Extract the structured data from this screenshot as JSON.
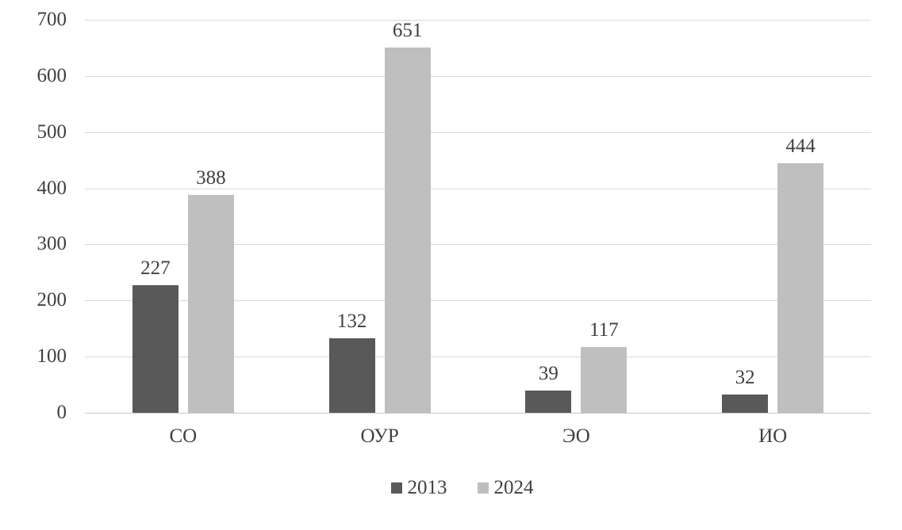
{
  "chart_data": {
    "type": "bar",
    "categories": [
      "СО",
      "ОУР",
      "ЭО",
      "ИО"
    ],
    "series": [
      {
        "name": "2013",
        "color": "#595959",
        "values": [
          227,
          132,
          39,
          32
        ]
      },
      {
        "name": "2024",
        "color": "#bfbfbf",
        "values": [
          388,
          651,
          117,
          444
        ]
      }
    ],
    "title": "",
    "xlabel": "",
    "ylabel": "",
    "ylim": [
      0,
      700
    ],
    "yticks": [
      0,
      100,
      200,
      300,
      400,
      500,
      600,
      700
    ],
    "grid": true,
    "legend_position": "bottom",
    "data_labels": true
  },
  "colors": {
    "gridline": "#d9d9d9",
    "axis_line": "#c6c6c6",
    "text": "#404040"
  }
}
